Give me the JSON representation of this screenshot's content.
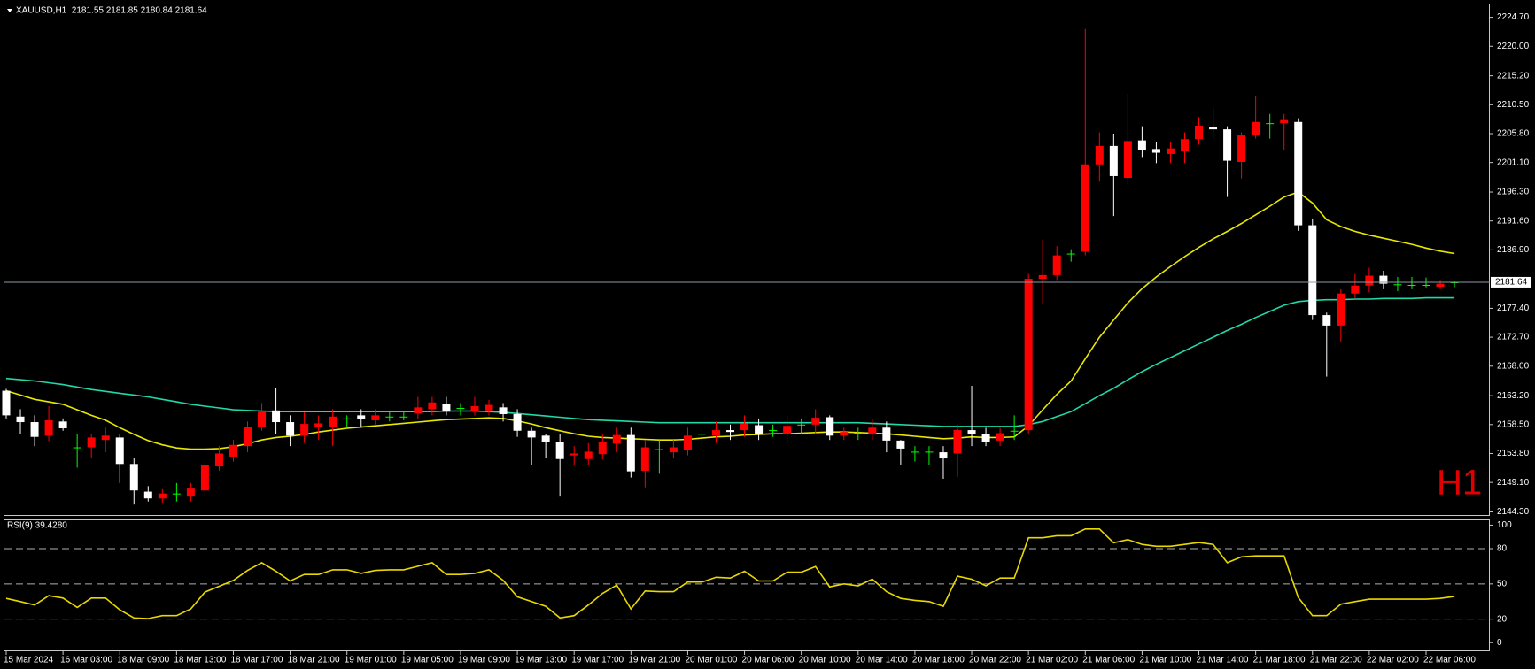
{
  "chart_data": [
    {
      "type": "candlestick",
      "title": "XAUUSD,H1  2181.55 2181.85 2180.84 2181.64",
      "watermark": "H1",
      "x": [
        "15 Mar 2024",
        null,
        null,
        null,
        "16 Mar 03:00",
        null,
        null,
        null,
        "18 Mar 09:00",
        null,
        null,
        null,
        "18 Mar 13:00",
        null,
        null,
        null,
        "18 Mar 17:00",
        null,
        null,
        null,
        "18 Mar 21:00",
        null,
        null,
        null,
        "19 Mar 01:00",
        null,
        null,
        null,
        "19 Mar 05:00",
        null,
        null,
        null,
        "19 Mar 09:00",
        null,
        null,
        null,
        "19 Mar 13:00",
        null,
        null,
        null,
        "19 Mar 17:00",
        null,
        null,
        null,
        "19 Mar 21:00",
        null,
        null,
        null,
        "20 Mar 01:00",
        null,
        null,
        null,
        "20 Mar 06:00",
        null,
        null,
        null,
        "20 Mar 10:00",
        null,
        null,
        null,
        "20 Mar 14:00",
        null,
        null,
        null,
        "20 Mar 18:00",
        null,
        null,
        null,
        "20 Mar 22:00",
        null,
        null,
        null,
        "21 Mar 02:00",
        null,
        null,
        null,
        "21 Mar 06:00",
        null,
        null,
        null,
        "21 Mar 10:00",
        null,
        null,
        null,
        "21 Mar 14:00",
        null,
        null,
        null,
        "21 Mar 18:00",
        null,
        null,
        null,
        "21 Mar 22:00",
        null,
        null,
        null,
        "22 Mar 02:00",
        null,
        null,
        null,
        "22 Mar 06:00",
        null,
        null
      ],
      "open": [
        2164.0,
        2159.8,
        2158.9,
        2156.7,
        2159.0,
        2154.8,
        2154.8,
        2156.0,
        2156.4,
        2152.1,
        2147.6,
        2146.5,
        2147.3,
        2146.8,
        2147.8,
        2151.7,
        2153.3,
        2155.0,
        2158.1,
        2160.8,
        2158.9,
        2156.7,
        2158.1,
        2158.1,
        2159.5,
        2160.0,
        2159.2,
        2159.8,
        2159.8,
        2160.3,
        2161.0,
        2161.9,
        2161.2,
        2160.6,
        2160.8,
        2161.3,
        2160.2,
        2157.5,
        2156.7,
        2155.7,
        2153.5,
        2152.9,
        2153.7,
        2155.4,
        2156.8,
        2151.0,
        2154.5,
        2154.0,
        2154.3,
        2157.0,
        2156.7,
        2157.6,
        2157.6,
        2158.4,
        2157.6,
        2157.0,
        2158.5,
        2158.5,
        2159.7,
        2156.7,
        2157.1,
        2157.0,
        2158.0,
        2155.9,
        2154.1,
        2154.1,
        2154.0,
        2153.8,
        2157.6,
        2157.0,
        2155.9,
        2157.5,
        2157.6,
        2182.2,
        2182.8,
        2186.3,
        2186.6,
        2200.8,
        2203.8,
        2198.6,
        2204.7,
        2203.3,
        2202.5,
        2202.9,
        2204.9,
        2206.8,
        2206.5,
        2201.2,
        2205.5,
        2207.5,
        2207.5,
        2207.7,
        2190.9,
        2176.3,
        2174.6,
        2179.8,
        2181.1,
        2182.7,
        2181.3,
        2181.2,
        2181.2,
        2180.9,
        2181.55
      ],
      "high": [
        2164.3,
        2161.0,
        2160.0,
        2161.5,
        2159.5,
        2157.0,
        2157.0,
        2158.0,
        2157.0,
        2153.0,
        2148.5,
        2148.0,
        2149.0,
        2149.0,
        2152.5,
        2155.0,
        2156.0,
        2159.0,
        2162.0,
        2164.5,
        2160.0,
        2160.5,
        2160.0,
        2161.0,
        2160.0,
        2161.0,
        2161.0,
        2160.5,
        2160.5,
        2163.0,
        2163.0,
        2163.0,
        2162.0,
        2163.0,
        2162.5,
        2162.0,
        2161.0,
        2158.0,
        2157.0,
        2157.0,
        2155.0,
        2155.5,
        2157.0,
        2158.0,
        2158.0,
        2156.0,
        2156.0,
        2156.0,
        2158.0,
        2158.0,
        2159.0,
        2158.5,
        2160.0,
        2159.5,
        2158.5,
        2160.0,
        2159.5,
        2161.0,
        2160.0,
        2158.0,
        2158.0,
        2159.5,
        2159.0,
        2156.0,
        2155.0,
        2155.0,
        2155.0,
        2158.5,
        2164.8,
        2158.0,
        2158.0,
        2160.0,
        2183.0,
        2188.6,
        2187.5,
        2187.0,
        2222.8,
        2206.0,
        2205.8,
        2212.3,
        2207.0,
        2204.5,
        2204.5,
        2206.0,
        2208.5,
        2210.0,
        2207.0,
        2206.0,
        2212.0,
        2209.0,
        2209.0,
        2208.3,
        2192.0,
        2176.7,
        2180.5,
        2183.0,
        2184.0,
        2183.5,
        2182.5,
        2182.5,
        2182.4,
        2182.0,
        2181.85
      ],
      "low": [
        2159.5,
        2157.0,
        2155.0,
        2155.8,
        2157.5,
        2151.5,
        2153.0,
        2154.0,
        2149.0,
        2145.5,
        2146.0,
        2145.8,
        2146.0,
        2146.0,
        2147.0,
        2151.0,
        2152.5,
        2154.0,
        2157.5,
        2157.0,
        2155.0,
        2155.5,
        2156.0,
        2155.0,
        2158.0,
        2158.0,
        2158.5,
        2159.0,
        2159.2,
        2159.5,
        2160.0,
        2160.0,
        2160.0,
        2160.0,
        2160.0,
        2159.0,
        2156.5,
        2152.0,
        2153.0,
        2146.8,
        2152.0,
        2152.0,
        2152.8,
        2154.0,
        2149.9,
        2148.3,
        2150.5,
        2153.0,
        2153.5,
        2155.0,
        2155.5,
        2156.0,
        2156.5,
        2156.0,
        2156.5,
        2155.5,
        2157.0,
        2157.0,
        2156.0,
        2156.0,
        2156.0,
        2156.0,
        2154.0,
        2152.0,
        2152.5,
        2152.0,
        2149.7,
        2150.0,
        2155.0,
        2155.0,
        2155.0,
        2156.0,
        2157.0,
        2178.1,
        2182.0,
        2185.0,
        2186.0,
        2198.0,
        2192.4,
        2197.5,
        2202.0,
        2201.0,
        2201.0,
        2201.0,
        2204.0,
        2205.0,
        2195.5,
        2198.5,
        2205.0,
        2205.0,
        2203.1,
        2190.0,
        2175.5,
        2166.3,
        2172.0,
        2179.0,
        2180.0,
        2180.5,
        2180.2,
        2180.5,
        2180.8,
        2180.5,
        2180.84
      ],
      "close": [
        2160.0,
        2158.9,
        2156.5,
        2159.2,
        2157.9,
        2154.8,
        2156.4,
        2156.7,
        2152.1,
        2147.8,
        2146.5,
        2147.3,
        2147.3,
        2148.1,
        2151.9,
        2153.8,
        2155.2,
        2158.1,
        2160.6,
        2158.9,
        2156.7,
        2158.6,
        2158.7,
        2159.8,
        2159.5,
        2159.4,
        2160.0,
        2159.8,
        2159.8,
        2161.3,
        2162.1,
        2160.6,
        2161.2,
        2161.5,
        2161.7,
        2160.2,
        2157.5,
        2156.4,
        2155.7,
        2152.9,
        2153.8,
        2154.1,
        2155.6,
        2156.8,
        2150.9,
        2154.8,
        2154.5,
        2154.8,
        2156.7,
        2157.0,
        2157.6,
        2157.3,
        2158.7,
        2157.0,
        2157.6,
        2158.3,
        2158.5,
        2159.6,
        2156.7,
        2157.3,
        2157.1,
        2158.0,
        2155.9,
        2154.6,
        2154.1,
        2154.1,
        2153.0,
        2157.6,
        2157.0,
        2155.7,
        2157.1,
        2157.5,
        2182.2,
        2182.8,
        2186.0,
        2186.3,
        2200.8,
        2203.8,
        2198.9,
        2204.6,
        2203.1,
        2202.7,
        2203.4,
        2204.9,
        2207.1,
        2206.5,
        2201.4,
        2205.5,
        2207.7,
        2207.5,
        2208.0,
        2190.9,
        2176.3,
        2174.6,
        2179.8,
        2181.1,
        2182.7,
        2181.4,
        2181.3,
        2181.2,
        2181.2,
        2181.4,
        2181.64
      ],
      "up_color": "#ff0000",
      "down_color": "#ffffff",
      "doji_color": "#00ff00",
      "overlays": [
        {
          "color": "#e8e800",
          "values": [
            2164.0,
            2163.3,
            2162.6,
            2162.2,
            2161.8,
            2160.9,
            2160.0,
            2159.2,
            2158.0,
            2156.9,
            2155.9,
            2155.2,
            2154.7,
            2154.5,
            2154.5,
            2154.6,
            2154.9,
            2155.4,
            2156.0,
            2156.4,
            2156.6,
            2156.9,
            2157.3,
            2157.6,
            2157.9,
            2158.1,
            2158.3,
            2158.5,
            2158.7,
            2158.9,
            2159.1,
            2159.3,
            2159.4,
            2159.5,
            2159.6,
            2159.5,
            2159.1,
            2158.6,
            2158.0,
            2157.5,
            2157.0,
            2156.6,
            2156.4,
            2156.3,
            2156.2,
            2156.1,
            2156.0,
            2156.0,
            2156.1,
            2156.3,
            2156.5,
            2156.6,
            2156.8,
            2156.9,
            2157.0,
            2157.0,
            2157.1,
            2157.2,
            2157.3,
            2157.3,
            2157.2,
            2157.1,
            2157.0,
            2156.8,
            2156.6,
            2156.4,
            2156.2,
            2156.3,
            2156.5,
            2156.4,
            2156.4,
            2156.5,
            2158.3,
            2160.9,
            2163.4,
            2165.6,
            2169.2,
            2172.7,
            2175.5,
            2178.3,
            2180.6,
            2182.5,
            2184.2,
            2185.8,
            2187.3,
            2188.7,
            2189.9,
            2191.2,
            2192.6,
            2194.0,
            2195.5,
            2196.3,
            2194.5,
            2191.8,
            2190.7,
            2189.9,
            2189.3,
            2188.8,
            2188.3,
            2187.8,
            2187.2,
            2186.7,
            2186.3
          ]
        },
        {
          "color": "#20d8a8",
          "values": [
            2166.0,
            2165.8,
            2165.6,
            2165.3,
            2165.0,
            2164.6,
            2164.2,
            2163.9,
            2163.6,
            2163.3,
            2163.0,
            2162.6,
            2162.2,
            2161.8,
            2161.5,
            2161.2,
            2160.9,
            2160.8,
            2160.7,
            2160.6,
            2160.6,
            2160.6,
            2160.6,
            2160.6,
            2160.6,
            2160.6,
            2160.6,
            2160.6,
            2160.6,
            2160.6,
            2160.6,
            2160.7,
            2160.7,
            2160.7,
            2160.6,
            2160.5,
            2160.3,
            2160.1,
            2159.9,
            2159.7,
            2159.5,
            2159.3,
            2159.2,
            2159.1,
            2159.0,
            2158.9,
            2158.8,
            2158.8,
            2158.8,
            2158.8,
            2158.8,
            2158.8,
            2158.8,
            2158.8,
            2158.8,
            2158.8,
            2158.8,
            2158.8,
            2158.8,
            2158.8,
            2158.8,
            2158.7,
            2158.6,
            2158.5,
            2158.4,
            2158.3,
            2158.2,
            2158.2,
            2158.2,
            2158.2,
            2158.2,
            2158.2,
            2158.5,
            2159.0,
            2159.8,
            2160.6,
            2161.9,
            2163.2,
            2164.4,
            2165.8,
            2167.1,
            2168.3,
            2169.4,
            2170.5,
            2171.6,
            2172.7,
            2173.8,
            2174.8,
            2175.9,
            2176.9,
            2177.9,
            2178.5,
            2178.7,
            2178.8,
            2178.8,
            2178.9,
            2178.9,
            2179.0,
            2179.0,
            2179.0,
            2179.1,
            2179.1,
            2179.1
          ]
        }
      ],
      "current_price": 2181.64,
      "current_price_color": "#8c9aa8",
      "ylim": [
        2143.8,
        2226.8
      ],
      "yticks": [
        {
          "value": 2224.7,
          "label": "2224.70"
        },
        {
          "value": 2220.0,
          "label": "2220.00"
        },
        {
          "value": 2215.2,
          "label": "2215.20"
        },
        {
          "value": 2210.5,
          "label": "2210.50"
        },
        {
          "value": 2205.8,
          "label": "2205.80"
        },
        {
          "value": 2201.1,
          "label": "2201.10"
        },
        {
          "value": 2196.3,
          "label": "2196.30"
        },
        {
          "value": 2191.6,
          "label": "2191.60"
        },
        {
          "value": 2186.9,
          "label": "2186.90"
        },
        {
          "value": 2177.4,
          "label": "2177.40"
        },
        {
          "value": 2172.7,
          "label": "2172.70"
        },
        {
          "value": 2168.0,
          "label": "2168.00"
        },
        {
          "value": 2163.2,
          "label": "2163.20"
        },
        {
          "value": 2158.5,
          "label": "2158.50"
        },
        {
          "value": 2153.8,
          "label": "2153.80"
        },
        {
          "value": 2149.1,
          "label": "2149.10"
        },
        {
          "value": 2144.3,
          "label": "2144.30"
        }
      ],
      "grid": false
    },
    {
      "type": "line",
      "title": "RSI(9) 39.4280",
      "color": "#e8d800",
      "values": [
        37.7,
        35,
        32,
        40,
        38,
        30,
        38,
        38,
        28,
        21,
        20.5,
        23,
        23,
        28.7,
        43,
        48,
        53,
        61.5,
        68,
        60.7,
        52.5,
        58,
        58,
        62,
        62,
        59,
        61.5,
        62,
        62,
        65,
        68,
        58,
        58,
        59,
        62,
        53,
        39,
        35,
        31,
        21,
        23,
        32,
        42,
        49,
        28.7,
        44,
        43.4,
        43.4,
        51.6,
        51.6,
        55.7,
        55,
        60.7,
        52.5,
        52.5,
        60,
        60,
        64.8,
        47.5,
        50,
        48.4,
        54,
        43.4,
        37.7,
        36,
        35,
        31,
        56.6,
        54,
        48.4,
        55,
        55,
        89.3,
        89.3,
        91,
        91,
        96.7,
        96.7,
        85,
        87.7,
        83.6,
        82,
        82,
        83.6,
        85.2,
        83.6,
        68,
        73,
        73.8,
        73.8,
        73.8,
        38.5,
        23,
        23,
        32.8,
        35,
        37,
        37,
        37,
        37,
        37,
        37.7,
        39.43
      ],
      "levels": [
        80,
        50,
        20
      ],
      "ylim": [
        -6.6,
        104.1
      ],
      "yticks": [
        100,
        80,
        50,
        20,
        0
      ],
      "grid": false
    }
  ]
}
